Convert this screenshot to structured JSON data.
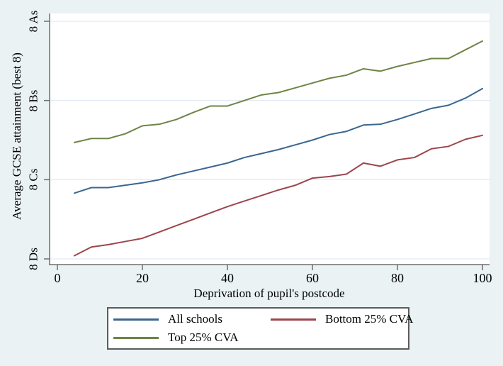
{
  "figure": {
    "background_color": "#eaf2f3",
    "plot_background_color": "#ffffff",
    "axis_color": "#6e6e6e",
    "gridline_color": "#e2ecf5",
    "legend_border_color": "#5c5c5c",
    "text_color": "#000000"
  },
  "chart_data": {
    "type": "line",
    "title": "",
    "xlabel": "Deprivation of pupil's postcode",
    "ylabel": "Average GCSE attainment (best 8)",
    "x_ticks": [
      0,
      20,
      40,
      60,
      80,
      100
    ],
    "y_ticks": [
      {
        "value": 1,
        "label": "8 Ds"
      },
      {
        "value": 2,
        "label": "8 Cs"
      },
      {
        "value": 3,
        "label": "8 Bs"
      },
      {
        "value": 4,
        "label": "8 As"
      }
    ],
    "xlim": [
      -1.8,
      101.7
    ],
    "ylim": [
      0.93,
      4.1
    ],
    "grid": "horizontal",
    "legend_position": "bottom",
    "x": [
      4,
      8,
      12,
      16,
      20,
      24,
      28,
      32,
      36,
      40,
      44,
      48,
      52,
      56,
      60,
      64,
      68,
      72,
      76,
      80,
      84,
      88,
      92,
      96,
      100
    ],
    "series": [
      {
        "name": "All schools",
        "color": "#3a6690",
        "values": [
          1.83,
          1.9,
          1.9,
          1.93,
          1.96,
          2.0,
          2.06,
          2.11,
          2.16,
          2.21,
          2.28,
          2.33,
          2.38,
          2.44,
          2.5,
          2.57,
          2.61,
          2.69,
          2.7,
          2.76,
          2.83,
          2.9,
          2.94,
          3.03,
          3.15
        ]
      },
      {
        "name": "Bottom 25% CVA",
        "color": "#9c454c",
        "values": [
          1.04,
          1.15,
          1.18,
          1.22,
          1.26,
          1.34,
          1.42,
          1.5,
          1.58,
          1.66,
          1.73,
          1.8,
          1.87,
          1.93,
          2.02,
          2.04,
          2.07,
          2.21,
          2.17,
          2.25,
          2.28,
          2.39,
          2.42,
          2.51,
          2.56
        ]
      },
      {
        "name": "Top 25% CVA",
        "color": "#6e8445",
        "values": [
          2.47,
          2.52,
          2.52,
          2.58,
          2.68,
          2.7,
          2.76,
          2.85,
          2.93,
          2.93,
          3.0,
          3.07,
          3.1,
          3.16,
          3.22,
          3.28,
          3.32,
          3.4,
          3.37,
          3.43,
          3.48,
          3.53,
          3.53,
          3.64,
          3.75
        ]
      }
    ],
    "legend_order": [
      "All schools",
      "Bottom 25% CVA",
      "Top 25% CVA"
    ]
  }
}
